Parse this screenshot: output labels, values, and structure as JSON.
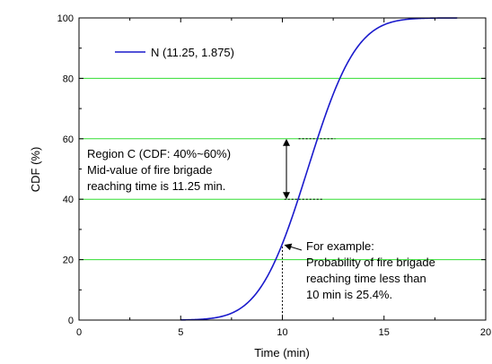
{
  "chart_data": {
    "type": "line",
    "xlabel": "Time (min)",
    "ylabel": "CDF (%)",
    "xlim": [
      0,
      20
    ],
    "ylim": [
      0,
      100
    ],
    "x_ticks": [
      0,
      5,
      10,
      15,
      20
    ],
    "y_ticks": [
      0,
      20,
      40,
      60,
      80,
      100
    ],
    "x_tick_labels": [
      "0",
      "5",
      "10",
      "15",
      "20"
    ],
    "y_tick_labels": [
      "0",
      "20",
      "40",
      "60",
      "80",
      "100"
    ],
    "grid": "horizontal lines at 20, 40, 60, 80",
    "grid_color": "#33dd33",
    "legend_position": "top-left",
    "series": [
      {
        "name": "N (11.25, 1.875)",
        "color": "#1a1acc",
        "distribution": "normal CDF",
        "mean": 11.25,
        "sd": 1.875,
        "x_range": [
          5,
          18.6
        ],
        "x": [
          5,
          6,
          7,
          8,
          9,
          10,
          10.5,
          11,
          11.25,
          11.5,
          12,
          12.5,
          13,
          14,
          15,
          16,
          17,
          18.6
        ],
        "y": [
          0.04,
          0.25,
          1.2,
          4.2,
          11.5,
          25.4,
          34.4,
          44.7,
          50.0,
          55.3,
          65.6,
          74.6,
          82.5,
          92.8,
          97.7,
          99.4,
          99.9,
          100
        ]
      }
    ],
    "reference_lines": [
      {
        "type": "vertical-dashed",
        "x": 10,
        "y_from": 0,
        "y_to": 25.4
      },
      {
        "type": "horizontal-dashed",
        "y": 60,
        "x_from": 10.8,
        "x_to": 12.6
      },
      {
        "type": "horizontal-dashed",
        "y": 40,
        "x_from": 10.1,
        "x_to": 12.0
      }
    ],
    "annotations": {
      "region": {
        "lines": [
          "Region C (CDF: 40%~60%)",
          "Mid-value of fire brigade",
          "reaching time is 11.25 min."
        ],
        "arrow_x": 10.2,
        "arrow_y_from": 60,
        "arrow_y_to": 40
      },
      "example": {
        "lines": [
          "For example:",
          "Probability of  fire brigade",
          "reaching time less than",
          "10 min is 25.4%."
        ],
        "points_to": [
          10,
          25.4
        ]
      }
    }
  }
}
